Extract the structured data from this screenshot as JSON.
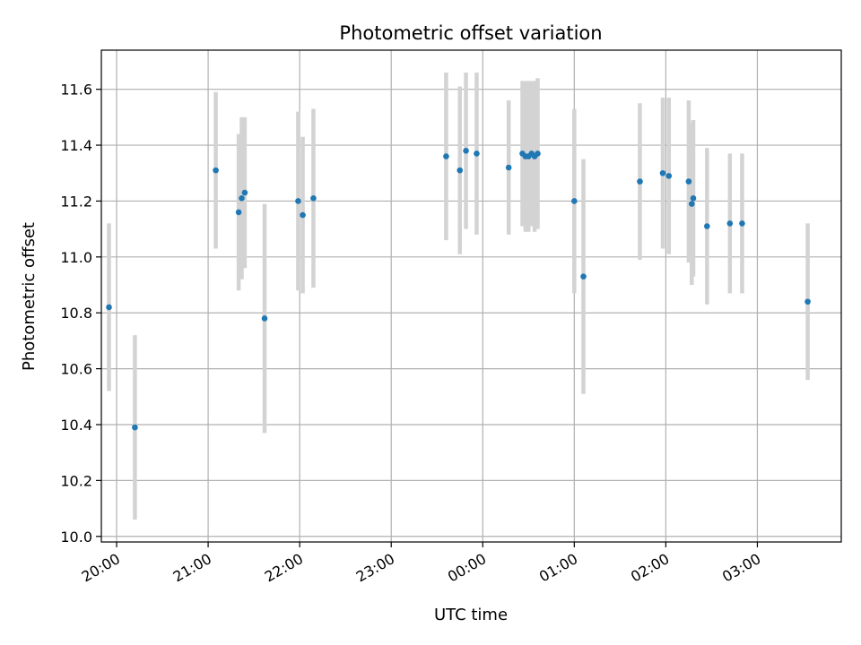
{
  "chart_data": {
    "type": "scatter",
    "title": "Photometric offset variation",
    "xlabel": "UTC time",
    "ylabel": "Photometric offset",
    "grid": true,
    "x_ticks": [
      "20:00",
      "21:00",
      "22:00",
      "23:00",
      "00:00",
      "01:00",
      "02:00",
      "03:00"
    ],
    "y_ticks": [
      "10.0",
      "10.2",
      "10.4",
      "10.6",
      "10.8",
      "11.0",
      "11.2",
      "11.4",
      "11.6"
    ],
    "xlim": [
      "19:50",
      "03:55"
    ],
    "ylim": [
      9.98,
      11.74
    ],
    "colors": {
      "points": "#1f77b4",
      "errorbars": "#d3d3d3",
      "grid": "#b0b0b0"
    },
    "series": [
      {
        "points": [
          {
            "x": "19:55",
            "y": 10.82,
            "yerr": 0.3
          },
          {
            "x": "20:12",
            "y": 10.39,
            "yerr": 0.33
          },
          {
            "x": "21:05",
            "y": 11.31,
            "yerr": 0.28
          },
          {
            "x": "21:20",
            "y": 11.16,
            "yerr": 0.28
          },
          {
            "x": "21:22",
            "y": 11.21,
            "yerr": 0.29
          },
          {
            "x": "21:24",
            "y": 11.23,
            "yerr": 0.27
          },
          {
            "x": "21:37",
            "y": 10.78,
            "yerr": 0.41
          },
          {
            "x": "21:59",
            "y": 11.2,
            "yerr": 0.32
          },
          {
            "x": "22:02",
            "y": 11.15,
            "yerr": 0.28
          },
          {
            "x": "22:09",
            "y": 11.21,
            "yerr": 0.32
          },
          {
            "x": "23:36",
            "y": 11.36,
            "yerr": 0.3
          },
          {
            "x": "23:45",
            "y": 11.31,
            "yerr": 0.3
          },
          {
            "x": "23:49",
            "y": 11.38,
            "yerr": 0.28
          },
          {
            "x": "23:56",
            "y": 11.37,
            "yerr": 0.29
          },
          {
            "x": "00:17",
            "y": 11.32,
            "yerr": 0.24
          },
          {
            "x": "00:26",
            "y": 11.37,
            "yerr": 0.26
          },
          {
            "x": "00:28",
            "y": 11.36,
            "yerr": 0.27
          },
          {
            "x": "00:30",
            "y": 11.36,
            "yerr": 0.27
          },
          {
            "x": "00:32",
            "y": 11.37,
            "yerr": 0.26
          },
          {
            "x": "00:34",
            "y": 11.36,
            "yerr": 0.27
          },
          {
            "x": "00:36",
            "y": 11.37,
            "yerr": 0.27
          },
          {
            "x": "01:00",
            "y": 11.2,
            "yerr": 0.33
          },
          {
            "x": "01:06",
            "y": 10.93,
            "yerr": 0.42
          },
          {
            "x": "01:43",
            "y": 11.27,
            "yerr": 0.28
          },
          {
            "x": "01:58",
            "y": 11.3,
            "yerr": 0.27
          },
          {
            "x": "02:02",
            "y": 11.29,
            "yerr": 0.28
          },
          {
            "x": "02:15",
            "y": 11.27,
            "yerr": 0.29
          },
          {
            "x": "02:17",
            "y": 11.19,
            "yerr": 0.29
          },
          {
            "x": "02:18",
            "y": 11.21,
            "yerr": 0.28
          },
          {
            "x": "02:27",
            "y": 11.11,
            "yerr": 0.28
          },
          {
            "x": "02:42",
            "y": 11.12,
            "yerr": 0.25
          },
          {
            "x": "02:50",
            "y": 11.12,
            "yerr": 0.25
          },
          {
            "x": "03:33",
            "y": 10.84,
            "yerr": 0.28
          }
        ]
      }
    ]
  }
}
